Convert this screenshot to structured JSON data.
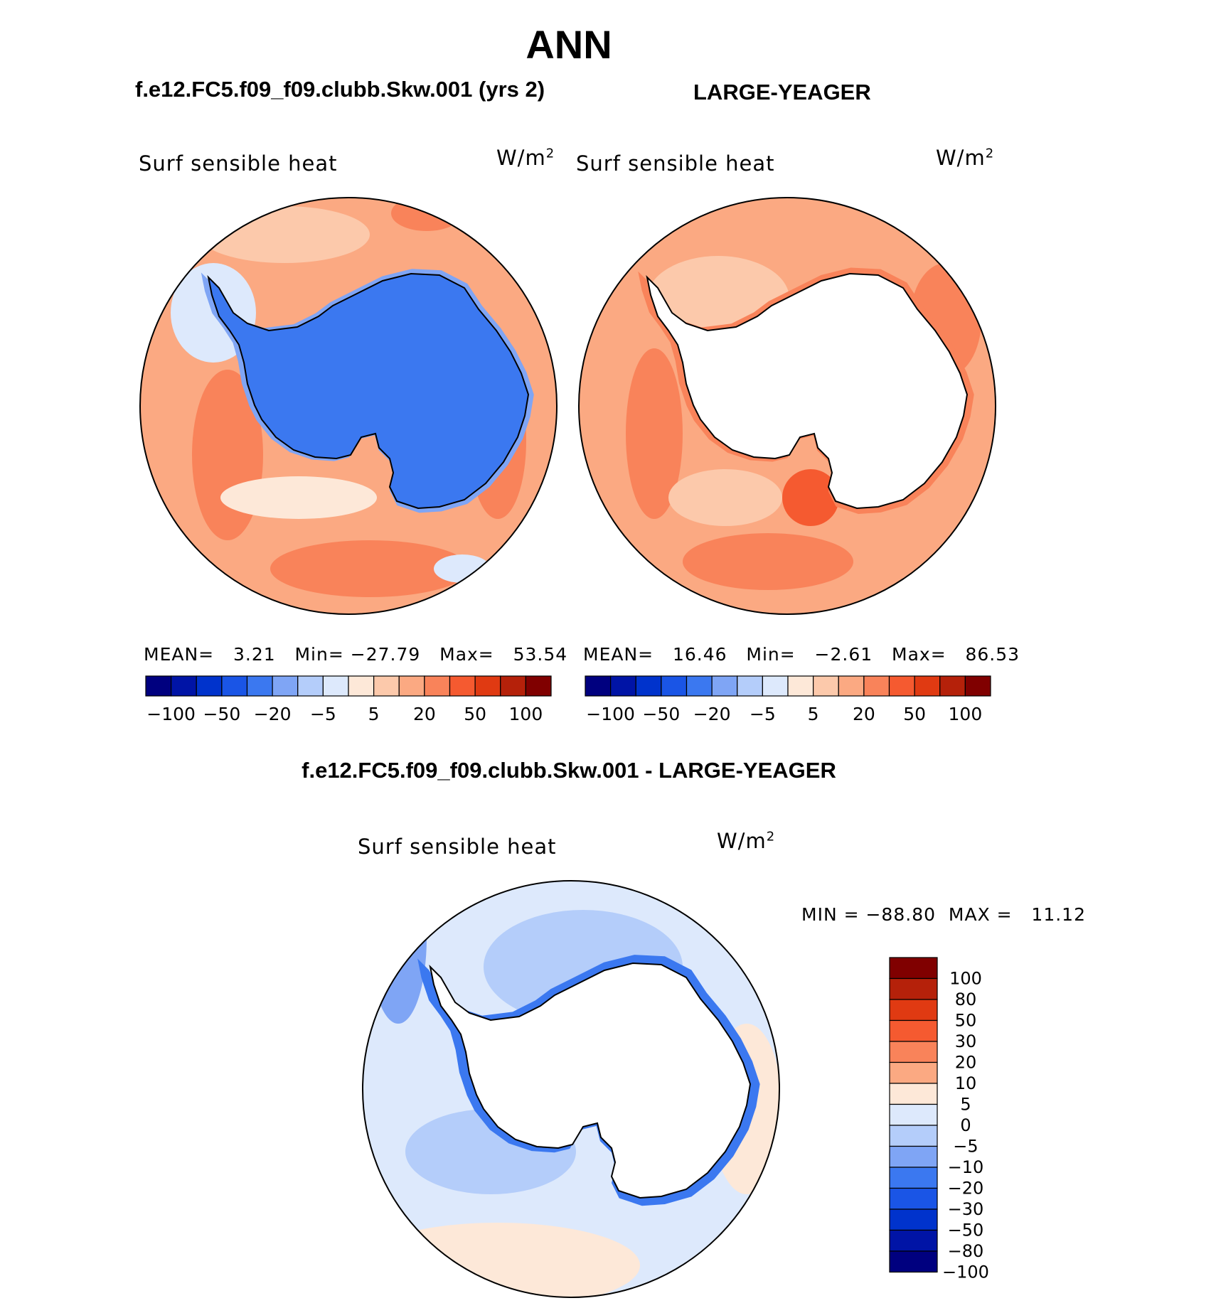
{
  "title": "ANN",
  "model_case": "f.e12.FC5.f09_f09.clubb.Skw.001 (yrs 2)",
  "obs_case": "LARGE-YEAGER",
  "diff_case": "f.e12.FC5.f09_f09.clubb.Skw.001 - LARGE-YEAGER",
  "panels": [
    {
      "variable": "Surf sensible heat",
      "units": "W/m",
      "units_exp": "2",
      "mean_label": "MEAN=",
      "mean": "3.21",
      "min_label": "Min=",
      "min": "−27.79",
      "max_label": "Max=",
      "max": "53.54"
    },
    {
      "variable": "Surf sensible heat",
      "units": "W/m",
      "units_exp": "2",
      "mean_label": "MEAN=",
      "mean": "16.46",
      "min_label": "Min=",
      "min": "−2.61",
      "max_label": "Max=",
      "max": "86.53"
    },
    {
      "variable": "Surf sensible heat",
      "units": "W/m",
      "units_exp": "2",
      "minmax": "MIN = −88.80  MAX =   11.12"
    }
  ],
  "colorbar_top": {
    "levels_shown": [
      "−100",
      "−50",
      "−20",
      "−5",
      "5",
      "20",
      "50",
      "100"
    ],
    "colors": [
      "#00007f",
      "#0014a6",
      "#0033cc",
      "#1a55e6",
      "#3b78f0",
      "#7fa5f5",
      "#b4cdfa",
      "#dde9fc",
      "#fde8d8",
      "#fcc9ab",
      "#fba982",
      "#f9835a",
      "#f55a30",
      "#e03a12",
      "#b5210a",
      "#800000"
    ]
  },
  "colorbar_diff": {
    "levels": [
      "100",
      "80",
      "50",
      "30",
      "20",
      "10",
      "5",
      "0",
      "−5",
      "−10",
      "−20",
      "−30",
      "−50",
      "−80",
      "−100"
    ],
    "colors": [
      "#800000",
      "#b5210a",
      "#e03a12",
      "#f55a30",
      "#f9835a",
      "#fba982",
      "#fde8d8",
      "#dde9fc",
      "#b4cdfa",
      "#7fa5f5",
      "#3b78f0",
      "#1a55e6",
      "#0033cc",
      "#0014a6",
      "#00007f"
    ]
  }
}
